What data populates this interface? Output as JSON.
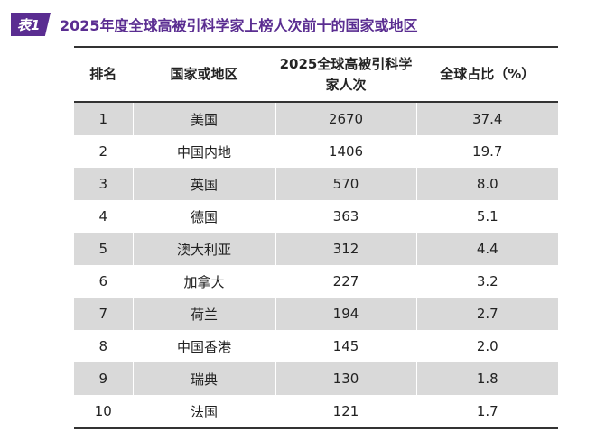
{
  "caption": {
    "tag": "表1",
    "title": "2025年度全球高被引科学家上榜人次前十的国家或地区"
  },
  "colors": {
    "accent": "#5a2d91",
    "row_shade": "#d9d9d9",
    "rule": "#333333"
  },
  "table": {
    "headers": [
      "排名",
      "国家或地区",
      "2025全球高被引科学家人次",
      "全球占比（%）"
    ],
    "rows": [
      [
        "1",
        "美国",
        "2670",
        "37.4"
      ],
      [
        "2",
        "中国内地",
        "1406",
        "19.7"
      ],
      [
        "3",
        "英国",
        "570",
        "8.0"
      ],
      [
        "4",
        "德国",
        "363",
        "5.1"
      ],
      [
        "5",
        "澳大利亚",
        "312",
        "4.4"
      ],
      [
        "6",
        "加拿大",
        "227",
        "3.2"
      ],
      [
        "7",
        "荷兰",
        "194",
        "2.7"
      ],
      [
        "8",
        "中国香港",
        "145",
        "2.0"
      ],
      [
        "9",
        "瑞典",
        "130",
        "1.8"
      ],
      [
        "10",
        "法国",
        "121",
        "1.7"
      ]
    ]
  }
}
